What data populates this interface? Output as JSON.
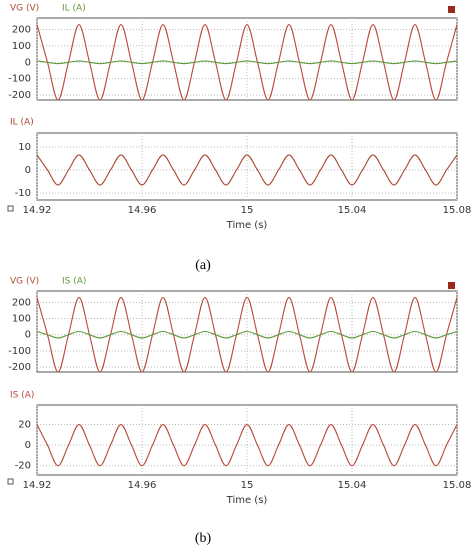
{
  "chart_data": [
    {
      "type": "line",
      "xlim": [
        14.92,
        15.08
      ],
      "ylim": [
        -230,
        270
      ],
      "yticks": [
        200,
        100,
        0,
        -100,
        -200
      ],
      "grid": true,
      "x": [
        14.92,
        14.924,
        14.928,
        14.932,
        14.936,
        14.94,
        14.944,
        14.948,
        14.952,
        14.956,
        14.96,
        14.964,
        14.968,
        14.972,
        14.976,
        14.98,
        14.984,
        14.988,
        14.992,
        14.996,
        15,
        15.004,
        15.008,
        15.012,
        15.016,
        15.02,
        15.024,
        15.028,
        15.032,
        15.036,
        15.04,
        15.044,
        15.048,
        15.052,
        15.056,
        15.06,
        15.064,
        15.068,
        15.072,
        15.076,
        15.08
      ],
      "series": [
        {
          "name": "VG (V)",
          "color": "#b8483a",
          "values": [
            230,
            0,
            -230,
            0,
            230,
            0,
            -230,
            0,
            230,
            0,
            -230,
            0,
            230,
            0,
            -230,
            0,
            230,
            0,
            -230,
            0,
            230,
            0,
            -230,
            0,
            230,
            0,
            -230,
            0,
            230,
            0,
            -230,
            0,
            230,
            0,
            -230,
            0,
            230,
            0,
            -230,
            0,
            230
          ]
        },
        {
          "name": "IL (A)",
          "color": "#5e9a3a",
          "values": [
            8,
            0,
            -8,
            0,
            8,
            0,
            -8,
            0,
            8,
            0,
            -8,
            0,
            8,
            0,
            -8,
            0,
            8,
            0,
            -8,
            0,
            8,
            0,
            -8,
            0,
            8,
            0,
            -8,
            0,
            8,
            0,
            -8,
            0,
            8,
            0,
            -8,
            0,
            8,
            0,
            -8,
            0,
            8
          ]
        }
      ]
    },
    {
      "type": "line",
      "xlim": [
        14.92,
        15.08
      ],
      "ylim": [
        -13,
        16
      ],
      "yticks": [
        10,
        0,
        -10
      ],
      "grid": true,
      "xticks": [
        14.92,
        14.96,
        15,
        15.04,
        15.08
      ],
      "xlabel": "Time (s)",
      "x": [
        14.92,
        14.924,
        14.928,
        14.932,
        14.936,
        14.94,
        14.944,
        14.948,
        14.952,
        14.956,
        14.96,
        14.964,
        14.968,
        14.972,
        14.976,
        14.98,
        14.984,
        14.988,
        14.992,
        14.996,
        15,
        15.004,
        15.008,
        15.012,
        15.016,
        15.02,
        15.024,
        15.028,
        15.032,
        15.036,
        15.04,
        15.044,
        15.048,
        15.052,
        15.056,
        15.06,
        15.064,
        15.068,
        15.072,
        15.076,
        15.08
      ],
      "series": [
        {
          "name": "IL (A)",
          "color": "#a8472e",
          "values": [
            6.5,
            0,
            -6.5,
            0,
            6.5,
            0,
            -6.5,
            0,
            6.5,
            0,
            -6.5,
            0,
            6.5,
            0,
            -6.5,
            0,
            6.5,
            0,
            -6.5,
            0,
            6.5,
            0,
            -6.5,
            0,
            6.5,
            0,
            -6.5,
            0,
            6.5,
            0,
            -6.5,
            0,
            6.5,
            0,
            -6.5,
            0,
            6.5,
            0,
            -6.5,
            0,
            6.5
          ]
        }
      ]
    },
    {
      "type": "line",
      "xlim": [
        14.92,
        15.08
      ],
      "ylim": [
        -230,
        270
      ],
      "yticks": [
        200,
        100,
        0,
        -100,
        -200
      ],
      "grid": true,
      "x": [
        14.92,
        14.924,
        14.928,
        14.932,
        14.936,
        14.94,
        14.944,
        14.948,
        14.952,
        14.956,
        14.96,
        14.964,
        14.968,
        14.972,
        14.976,
        14.98,
        14.984,
        14.988,
        14.992,
        14.996,
        15,
        15.004,
        15.008,
        15.012,
        15.016,
        15.02,
        15.024,
        15.028,
        15.032,
        15.036,
        15.04,
        15.044,
        15.048,
        15.052,
        15.056,
        15.06,
        15.064,
        15.068,
        15.072,
        15.076,
        15.08
      ],
      "series": [
        {
          "name": "VG (V)",
          "color": "#b8483a",
          "values": [
            230,
            0,
            -230,
            0,
            230,
            0,
            -230,
            0,
            230,
            0,
            -230,
            0,
            230,
            0,
            -230,
            0,
            230,
            0,
            -230,
            0,
            230,
            0,
            -230,
            0,
            230,
            0,
            -230,
            0,
            230,
            0,
            -230,
            0,
            230,
            0,
            -230,
            0,
            230,
            0,
            -230,
            0,
            230
          ]
        },
        {
          "name": "IS (A)",
          "color": "#5e9a3a",
          "values": [
            20,
            0,
            -20,
            0,
            20,
            0,
            -20,
            0,
            20,
            0,
            -20,
            0,
            20,
            0,
            -20,
            0,
            20,
            0,
            -20,
            0,
            20,
            0,
            -20,
            0,
            20,
            0,
            -20,
            0,
            20,
            0,
            -20,
            0,
            20,
            0,
            -20,
            0,
            20,
            0,
            -20,
            0,
            20
          ]
        }
      ]
    },
    {
      "type": "line",
      "xlim": [
        14.92,
        15.08
      ],
      "ylim": [
        -29,
        39
      ],
      "yticks": [
        20,
        0,
        -20
      ],
      "grid": true,
      "xticks": [
        14.92,
        14.96,
        15,
        15.04,
        15.08
      ],
      "xlabel": "Time (s)",
      "x": [
        14.92,
        14.924,
        14.928,
        14.932,
        14.936,
        14.94,
        14.944,
        14.948,
        14.952,
        14.956,
        14.96,
        14.964,
        14.968,
        14.972,
        14.976,
        14.98,
        14.984,
        14.988,
        14.992,
        14.996,
        15,
        15.004,
        15.008,
        15.012,
        15.016,
        15.02,
        15.024,
        15.028,
        15.032,
        15.036,
        15.04,
        15.044,
        15.048,
        15.052,
        15.056,
        15.06,
        15.064,
        15.068,
        15.072,
        15.076,
        15.08
      ],
      "series": [
        {
          "name": "IS (A)",
          "color": "#b8483a",
          "values": [
            20,
            0,
            -20,
            0,
            20,
            0,
            -20,
            0,
            20,
            0,
            -20,
            0,
            20,
            0,
            -20,
            0,
            20,
            0,
            -20,
            0,
            20,
            0,
            -20,
            0,
            20,
            0,
            -20,
            0,
            20,
            0,
            -20,
            0,
            20,
            0,
            -20,
            0,
            20,
            0,
            -20,
            0,
            20
          ]
        }
      ]
    }
  ],
  "captions": [
    "(a)",
    "(b)"
  ]
}
